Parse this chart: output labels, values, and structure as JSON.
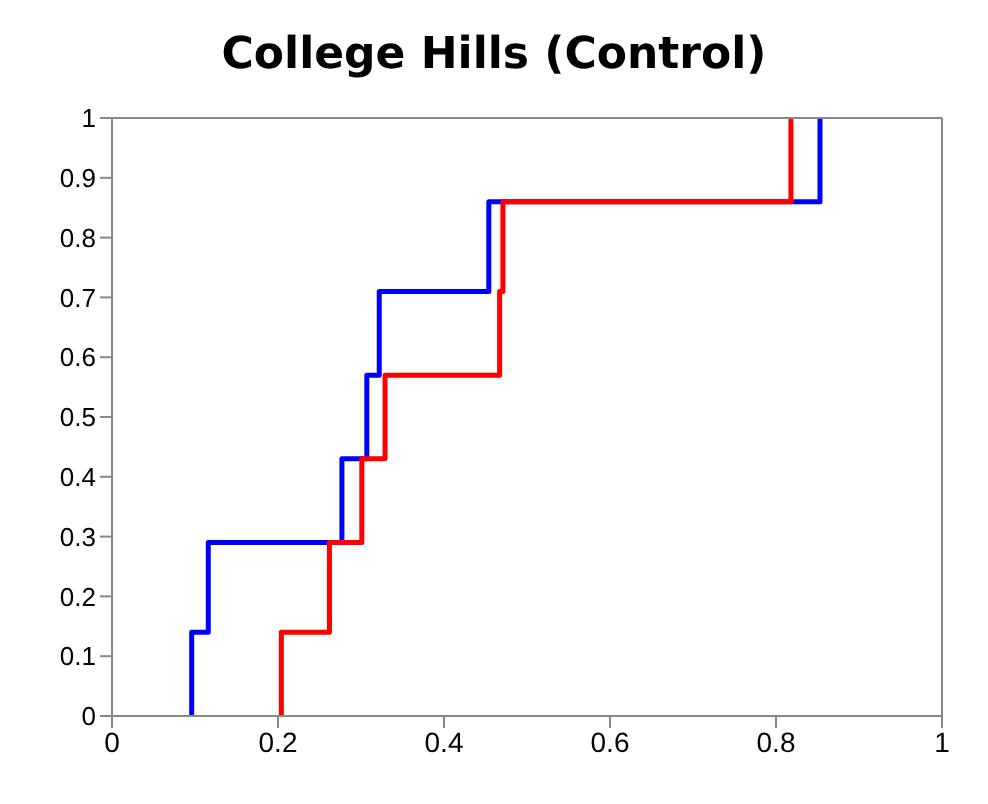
{
  "chart_data": {
    "type": "step",
    "title": "College Hills (Control)",
    "xlim": [
      0,
      1
    ],
    "xticks": [
      0,
      0.2,
      0.4,
      0.6,
      0.8,
      1
    ],
    "ylim": [
      0,
      1
    ],
    "yticks": [
      0,
      0.1,
      0.2,
      0.3,
      0.4,
      0.5,
      0.6,
      0.7,
      0.8,
      0.9,
      1
    ],
    "marker": "none",
    "line_style": "solid",
    "series": [
      {
        "color": "#0000ff",
        "x": [
          0.096,
          0.096,
          0.116,
          0.277,
          0.307,
          0.322,
          0.454,
          0.853
        ],
        "values": [
          0,
          0.14,
          0.29,
          0.43,
          0.57,
          0.71,
          0.86,
          1
        ]
      },
      {
        "color": "#ff0000",
        "x": [
          0.204,
          0.204,
          0.262,
          0.301,
          0.329,
          0.467,
          0.471,
          0.818
        ],
        "values": [
          0,
          0.14,
          0.29,
          0.43,
          0.57,
          0.71,
          0.86,
          1
        ]
      }
    ]
  }
}
